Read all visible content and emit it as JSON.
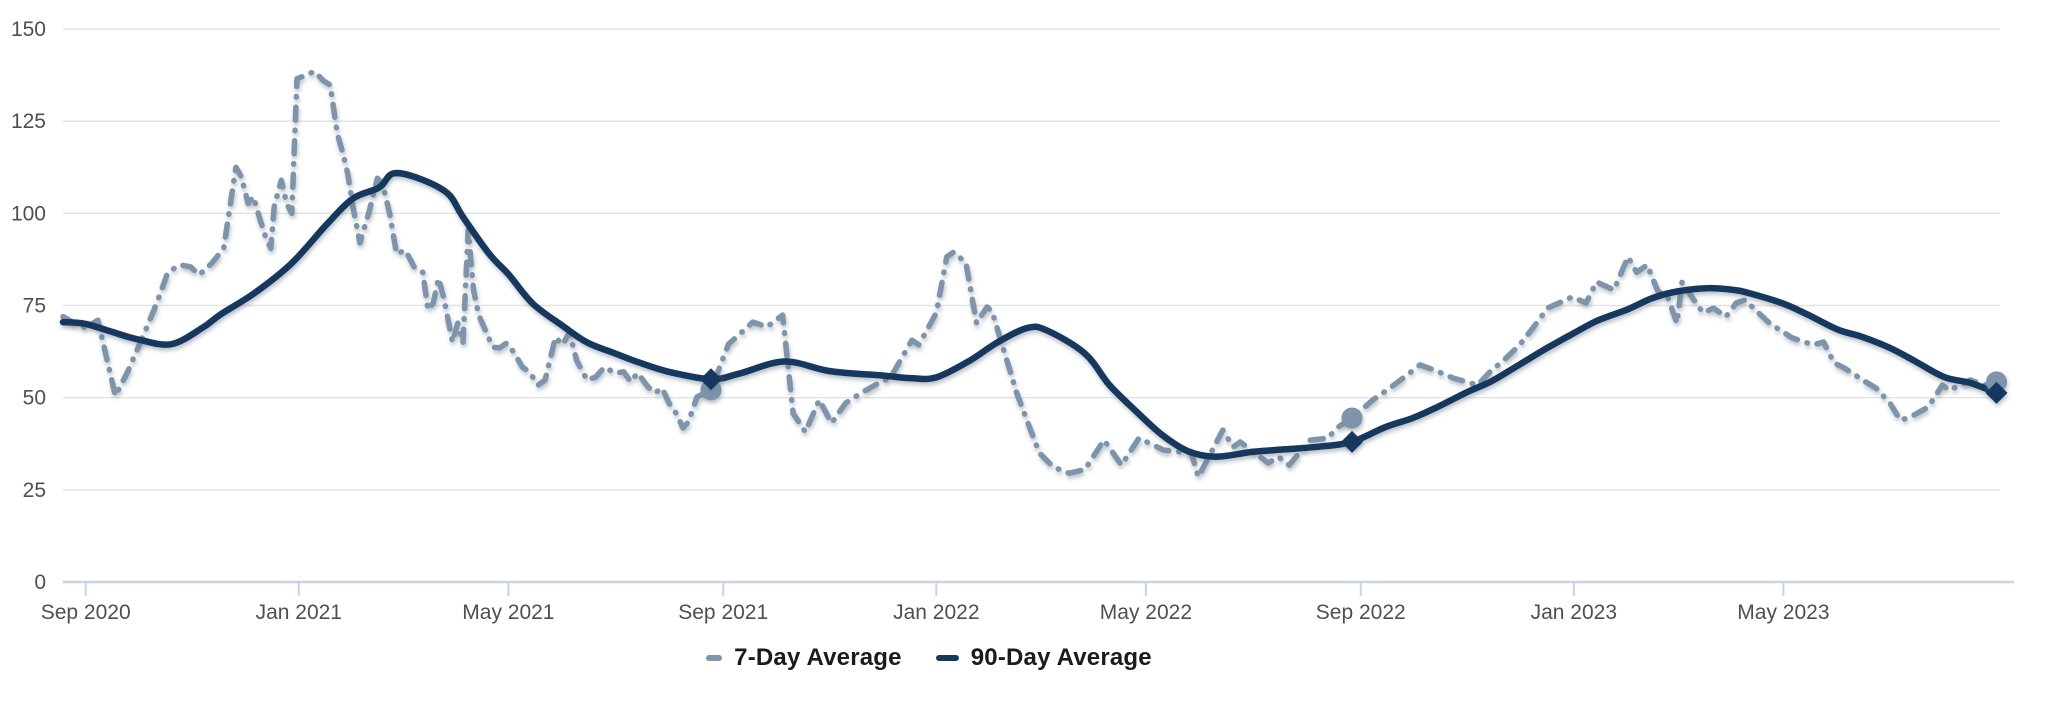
{
  "legend": {
    "items": [
      {
        "label": "7-Day Average",
        "series": "7-Day Average"
      },
      {
        "label": "90-Day Average",
        "series": "90-Day Average"
      }
    ]
  },
  "colors": {
    "series_7day": "#7E94AA",
    "series_90day": "#14395E",
    "gridline": "#e3e3e3",
    "axis_line": "#c9d3e4",
    "tick": "#c9d3e4",
    "axis_label": "#4f4f4f",
    "legend_text": "#1b1b1b",
    "background": "#ffffff"
  },
  "chart_data": {
    "type": "line",
    "title": "",
    "xlabel": "",
    "ylabel": "",
    "x_type": "time",
    "x_domain": [
      "2020-08-19",
      "2023-09-02"
    ],
    "y_domain": [
      0,
      150
    ],
    "y_ticks": [
      0,
      25,
      50,
      75,
      100,
      125,
      150
    ],
    "x_ticks": [
      {
        "date": "2020-09-01",
        "label": "Sep 2020"
      },
      {
        "date": "2021-01-01",
        "label": "Jan 2021"
      },
      {
        "date": "2021-05-01",
        "label": "May 2021"
      },
      {
        "date": "2021-09-01",
        "label": "Sep 2021"
      },
      {
        "date": "2022-01-01",
        "label": "Jan 2022"
      },
      {
        "date": "2022-05-01",
        "label": "May 2022"
      },
      {
        "date": "2022-09-01",
        "label": "Sep 2022"
      },
      {
        "date": "2023-01-01",
        "label": "Jan 2023"
      },
      {
        "date": "2023-05-01",
        "label": "May 2023"
      }
    ],
    "grid": "horizontal",
    "legend_position": "bottom-center",
    "series": [
      {
        "name": "7-Day Average",
        "color": "#7E94AA",
        "style": "dash-dot",
        "width": 5.5,
        "smooth": false,
        "points": [
          [
            "2020-08-19",
            72
          ],
          [
            "2020-08-26",
            70
          ],
          [
            "2020-09-01",
            69
          ],
          [
            "2020-09-08",
            71
          ],
          [
            "2020-09-18",
            50.5
          ],
          [
            "2020-09-25",
            57
          ],
          [
            "2020-10-05",
            68
          ],
          [
            "2020-10-12",
            76
          ],
          [
            "2020-10-18",
            84
          ],
          [
            "2020-10-25",
            86
          ],
          [
            "2020-10-31",
            85.5
          ],
          [
            "2020-11-05",
            83.3
          ],
          [
            "2020-11-12",
            86.4
          ],
          [
            "2020-11-19",
            90.5
          ],
          [
            "2020-11-26",
            112.5
          ],
          [
            "2020-11-29",
            110
          ],
          [
            "2020-12-03",
            102.7
          ],
          [
            "2020-12-06",
            104.5
          ],
          [
            "2020-12-10",
            98
          ],
          [
            "2020-12-13",
            93.6
          ],
          [
            "2020-12-16",
            90.5
          ],
          [
            "2020-12-18",
            102
          ],
          [
            "2020-12-22",
            109
          ],
          [
            "2020-12-25",
            102.7
          ],
          [
            "2020-12-28",
            100
          ],
          [
            "2020-12-31",
            136.5
          ],
          [
            "2021-01-05",
            137.5
          ],
          [
            "2021-01-10",
            138.5
          ],
          [
            "2021-01-15",
            136
          ],
          [
            "2021-01-19",
            134.8
          ],
          [
            "2021-01-23",
            121.7
          ],
          [
            "2021-01-26",
            116.7
          ],
          [
            "2021-01-29",
            110.8
          ],
          [
            "2021-02-01",
            101.8
          ],
          [
            "2021-02-05",
            92
          ],
          [
            "2021-02-10",
            100
          ],
          [
            "2021-02-15",
            109.5
          ],
          [
            "2021-02-18",
            108
          ],
          [
            "2021-02-22",
            100
          ],
          [
            "2021-02-26",
            89
          ],
          [
            "2021-03-03",
            90
          ],
          [
            "2021-03-08",
            85.5
          ],
          [
            "2021-03-13",
            84
          ],
          [
            "2021-03-16",
            73.8
          ],
          [
            "2021-03-19",
            75.7
          ],
          [
            "2021-03-22",
            82.4
          ],
          [
            "2021-03-25",
            77
          ],
          [
            "2021-03-30",
            65.1
          ],
          [
            "2021-04-02",
            70.2
          ],
          [
            "2021-04-05",
            64.8
          ],
          [
            "2021-04-08",
            95.5
          ],
          [
            "2021-04-11",
            79.2
          ],
          [
            "2021-04-14",
            72.4
          ],
          [
            "2021-04-17",
            69.2
          ],
          [
            "2021-04-22",
            63.7
          ],
          [
            "2021-04-26",
            63.5
          ],
          [
            "2021-04-30",
            64.8
          ],
          [
            "2021-05-04",
            62.4
          ],
          [
            "2021-05-09",
            58.3
          ],
          [
            "2021-05-13",
            57
          ],
          [
            "2021-05-18",
            53.4
          ],
          [
            "2021-05-22",
            54.8
          ],
          [
            "2021-05-28",
            66.4
          ],
          [
            "2021-06-01",
            64.3
          ],
          [
            "2021-06-05",
            67.8
          ],
          [
            "2021-06-09",
            60.2
          ],
          [
            "2021-06-15",
            54.8
          ],
          [
            "2021-06-20",
            55.6
          ],
          [
            "2021-06-25",
            58.3
          ],
          [
            "2021-07-01",
            56.7
          ],
          [
            "2021-07-06",
            57
          ],
          [
            "2021-07-10",
            54.3
          ],
          [
            "2021-07-14",
            56.7
          ],
          [
            "2021-07-20",
            52.9
          ],
          [
            "2021-07-24",
            51.3
          ],
          [
            "2021-07-28",
            52.6
          ],
          [
            "2021-08-01",
            48.5
          ],
          [
            "2021-08-05",
            45.8
          ],
          [
            "2021-08-09",
            41.8
          ],
          [
            "2021-08-12",
            43.4
          ],
          [
            "2021-08-17",
            50.2
          ],
          [
            "2021-08-25",
            52.1
          ],
          [
            "2021-09-04",
            64.5
          ],
          [
            "2021-09-18",
            70.5
          ],
          [
            "2021-09-26",
            69.2
          ],
          [
            "2021-10-05",
            72.4
          ],
          [
            "2021-10-11",
            45.8
          ],
          [
            "2021-10-18",
            40.7
          ],
          [
            "2021-10-26",
            49.4
          ],
          [
            "2021-11-02",
            43.1
          ],
          [
            "2021-11-10",
            48.5
          ],
          [
            "2021-11-19",
            51.3
          ],
          [
            "2021-11-27",
            53.4
          ],
          [
            "2021-12-06",
            55.6
          ],
          [
            "2021-12-18",
            65.6
          ],
          [
            "2021-12-22",
            64.3
          ],
          [
            "2022-01-01",
            73
          ],
          [
            "2022-01-07",
            88.2
          ],
          [
            "2022-01-11",
            89.5
          ],
          [
            "2022-01-18",
            86.5
          ],
          [
            "2022-01-24",
            70.2
          ],
          [
            "2022-01-30",
            74.6
          ],
          [
            "2022-02-02",
            73.3
          ],
          [
            "2022-02-16",
            51.3
          ],
          [
            "2022-02-24",
            41.2
          ],
          [
            "2022-03-01",
            35
          ],
          [
            "2022-03-09",
            31.2
          ],
          [
            "2022-03-18",
            29.5
          ],
          [
            "2022-03-27",
            30.5
          ],
          [
            "2022-04-07",
            38.5
          ],
          [
            "2022-04-17",
            31.7
          ],
          [
            "2022-04-27",
            39
          ],
          [
            "2022-05-11",
            35.8
          ],
          [
            "2022-05-27",
            35
          ],
          [
            "2022-05-31",
            28.5
          ],
          [
            "2022-06-14",
            41.2
          ],
          [
            "2022-06-20",
            36.6
          ],
          [
            "2022-06-24",
            38
          ],
          [
            "2022-07-10",
            32.3
          ],
          [
            "2022-07-16",
            33.9
          ],
          [
            "2022-07-22",
            31.7
          ],
          [
            "2022-08-03",
            38.5
          ],
          [
            "2022-08-13",
            39
          ],
          [
            "2022-08-19",
            42
          ],
          [
            "2022-08-27",
            44.5
          ],
          [
            "2022-09-08",
            49.4
          ],
          [
            "2022-09-20",
            53.4
          ],
          [
            "2022-10-05",
            58.9
          ],
          [
            "2022-10-13",
            57.5
          ],
          [
            "2022-10-24",
            55.3
          ],
          [
            "2022-11-07",
            53.4
          ],
          [
            "2022-11-15",
            57.5
          ],
          [
            "2022-11-21",
            59.7
          ],
          [
            "2022-12-01",
            64.3
          ],
          [
            "2022-12-09",
            69.2
          ],
          [
            "2022-12-17",
            74.3
          ],
          [
            "2022-12-25",
            76
          ],
          [
            "2022-12-31",
            77.3
          ],
          [
            "2023-01-08",
            75.7
          ],
          [
            "2023-01-14",
            81.4
          ],
          [
            "2023-01-24",
            79.2
          ],
          [
            "2023-02-01",
            88.2
          ],
          [
            "2023-02-06",
            84
          ],
          [
            "2023-02-12",
            86
          ],
          [
            "2023-02-18",
            79
          ],
          [
            "2023-02-24",
            77
          ],
          [
            "2023-03-01",
            70.2
          ],
          [
            "2023-03-04",
            81.4
          ],
          [
            "2023-03-10",
            77
          ],
          [
            "2023-03-16",
            73
          ],
          [
            "2023-03-22",
            74.3
          ],
          [
            "2023-03-29",
            71.9
          ],
          [
            "2023-04-04",
            75.7
          ],
          [
            "2023-04-09",
            76.5
          ],
          [
            "2023-04-23",
            70.2
          ],
          [
            "2023-05-06",
            66.2
          ],
          [
            "2023-05-18",
            64.3
          ],
          [
            "2023-05-24",
            65.1
          ],
          [
            "2023-05-30",
            59.4
          ],
          [
            "2023-06-05",
            58
          ],
          [
            "2023-06-17",
            54.3
          ],
          [
            "2023-06-23",
            52.6
          ],
          [
            "2023-07-01",
            48.5
          ],
          [
            "2023-07-07",
            43.9
          ],
          [
            "2023-07-13",
            44.8
          ],
          [
            "2023-07-23",
            47.5
          ],
          [
            "2023-07-31",
            53.4
          ],
          [
            "2023-08-04",
            52
          ],
          [
            "2023-08-16",
            54.8
          ],
          [
            "2023-08-24",
            53.4
          ],
          [
            "2023-08-31",
            54.3
          ]
        ]
      },
      {
        "name": "90-Day Average",
        "color": "#14395E",
        "style": "solid",
        "width": 6.5,
        "smooth": true,
        "points": [
          [
            "2020-08-19",
            70.5
          ],
          [
            "2020-09-01",
            70
          ],
          [
            "2020-09-15",
            68
          ],
          [
            "2020-10-01",
            65.8
          ],
          [
            "2020-10-20",
            64.5
          ],
          [
            "2020-11-07",
            69
          ],
          [
            "2020-11-17",
            72.5
          ],
          [
            "2020-12-07",
            78.5
          ],
          [
            "2020-12-28",
            86.5
          ],
          [
            "2021-01-17",
            97
          ],
          [
            "2021-02-01",
            104
          ],
          [
            "2021-02-16",
            107
          ],
          [
            "2021-02-24",
            110.8
          ],
          [
            "2021-03-10",
            109.6
          ],
          [
            "2021-03-27",
            105.5
          ],
          [
            "2021-04-05",
            99
          ],
          [
            "2021-04-20",
            89
          ],
          [
            "2021-05-01",
            83.5
          ],
          [
            "2021-05-15",
            75.5
          ],
          [
            "2021-06-01",
            69.5
          ],
          [
            "2021-06-15",
            65
          ],
          [
            "2021-07-01",
            62
          ],
          [
            "2021-07-15",
            59.5
          ],
          [
            "2021-08-01",
            57
          ],
          [
            "2021-08-25",
            55
          ],
          [
            "2021-09-10",
            56.5
          ],
          [
            "2021-10-06",
            59.8
          ],
          [
            "2021-11-01",
            57.2
          ],
          [
            "2021-12-01",
            56
          ],
          [
            "2021-12-17",
            55.3
          ],
          [
            "2022-01-01",
            55.5
          ],
          [
            "2022-01-20",
            60
          ],
          [
            "2022-02-05",
            65
          ],
          [
            "2022-02-22",
            68.9
          ],
          [
            "2022-03-05",
            68.3
          ],
          [
            "2022-03-27",
            62
          ],
          [
            "2022-04-10",
            53.5
          ],
          [
            "2022-04-25",
            46.5
          ],
          [
            "2022-05-10",
            40
          ],
          [
            "2022-05-25",
            35.5
          ],
          [
            "2022-06-10",
            34
          ],
          [
            "2022-07-01",
            35.3
          ],
          [
            "2022-07-20",
            36
          ],
          [
            "2022-08-10",
            36.8
          ],
          [
            "2022-08-27",
            38
          ],
          [
            "2022-09-15",
            42
          ],
          [
            "2022-10-01",
            44.5
          ],
          [
            "2022-10-15",
            47.5
          ],
          [
            "2022-11-01",
            51.5
          ],
          [
            "2022-11-15",
            54.5
          ],
          [
            "2022-12-01",
            59
          ],
          [
            "2022-12-15",
            63
          ],
          [
            "2023-01-01",
            67.5
          ],
          [
            "2023-01-15",
            71
          ],
          [
            "2023-02-01",
            74
          ],
          [
            "2023-02-15",
            77
          ],
          [
            "2023-03-01",
            78.8
          ],
          [
            "2023-03-18",
            79.7
          ],
          [
            "2023-04-01",
            79.3
          ],
          [
            "2023-04-11",
            78.4
          ],
          [
            "2023-05-01",
            75.5
          ],
          [
            "2023-05-15",
            72.5
          ],
          [
            "2023-06-01",
            68.5
          ],
          [
            "2023-06-15",
            66.5
          ],
          [
            "2023-07-01",
            63.5
          ],
          [
            "2023-07-15",
            60
          ],
          [
            "2023-08-01",
            55.6
          ],
          [
            "2023-08-16",
            54
          ],
          [
            "2023-08-31",
            51.3
          ]
        ]
      }
    ],
    "markers": [
      {
        "date": "2021-08-25",
        "series": "7-Day Average",
        "value": 52.1,
        "shape": "circle"
      },
      {
        "date": "2021-08-25",
        "series": "90-Day Average",
        "value": 55,
        "shape": "diamond"
      },
      {
        "date": "2022-08-27",
        "series": "7-Day Average",
        "value": 44.5,
        "shape": "circle"
      },
      {
        "date": "2022-08-27",
        "series": "90-Day Average",
        "value": 38,
        "shape": "diamond"
      },
      {
        "date": "2023-08-31",
        "series": "7-Day Average",
        "value": 54.3,
        "shape": "circle"
      },
      {
        "date": "2023-08-31",
        "series": "90-Day Average",
        "value": 51.3,
        "shape": "diamond"
      }
    ]
  }
}
